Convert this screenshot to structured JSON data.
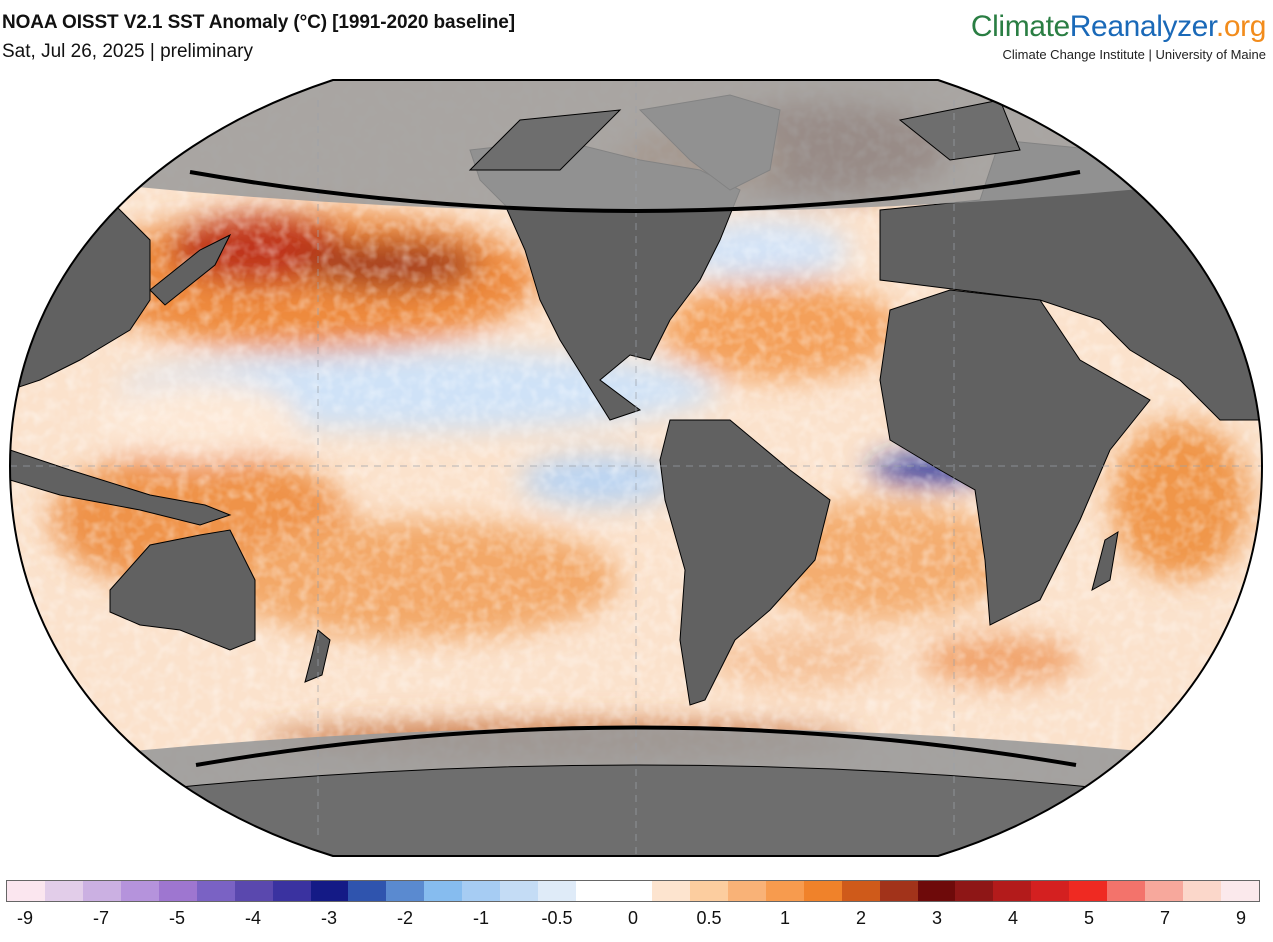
{
  "header": {
    "title": "NOAA OISST V2.1 SST Anomaly (°C) [1991-2020 baseline]",
    "subtitle": "Sat, Jul 26, 2025 | preliminary"
  },
  "brand": {
    "part1": "Climate",
    "part2": "Reanalyzer",
    "part3": ".org",
    "tagline": "Climate Change Institute | University of Maine",
    "colors": {
      "part1": "#2a7e43",
      "part2": "#1a69b8",
      "part3": "#f28c1c"
    }
  },
  "map": {
    "projection": "Robinson",
    "colors": {
      "land": "#616161",
      "polar_land": "#6e6e6e",
      "polar_mask": "#9a9a9a",
      "ocean_base": "#fbe2cc",
      "border": "#000000"
    }
  },
  "legend": {
    "colors": [
      "#fbe6ef",
      "#e2cde9",
      "#cbb0e2",
      "#b593dc",
      "#9e76d0",
      "#7a62c4",
      "#5a48ae",
      "#3a32a0",
      "#141a86",
      "#2f54ae",
      "#5a8ad0",
      "#86bcef",
      "#a6ccf3",
      "#c4dcf5",
      "#dfebf8",
      "#ffffff",
      "#ffffff",
      "#fde4cf",
      "#fccd9f",
      "#f9b277",
      "#f79b4e",
      "#f0822a",
      "#cf5a1a",
      "#a2331a",
      "#6e0a0a",
      "#8e1616",
      "#b31b1b",
      "#d42020",
      "#ef2a22",
      "#f3736b",
      "#f7a89c",
      "#fbd7ca",
      "#fbe9ec"
    ],
    "tick_labels": [
      "-9",
      "-7",
      "-5",
      "-4",
      "-3",
      "-2",
      "-1",
      "-0.5",
      "0",
      "0.5",
      "1",
      "2",
      "3",
      "4",
      "5",
      "7",
      "9"
    ]
  }
}
